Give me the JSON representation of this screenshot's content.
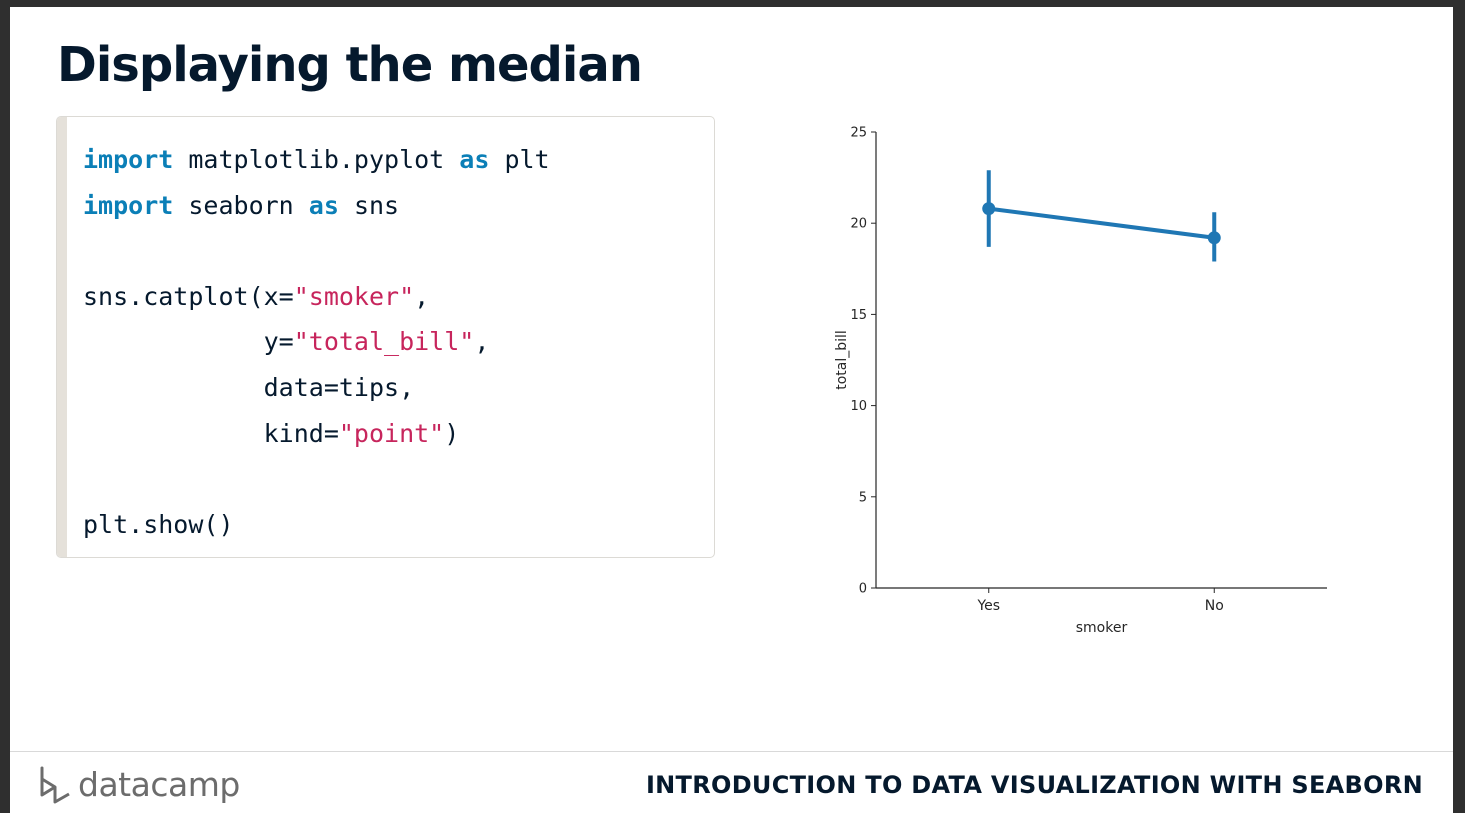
{
  "slide": {
    "title": "Displaying the median",
    "code_lines": [
      [
        {
          "t": "import",
          "k": "kw"
        },
        {
          "t": " matplotlib.pyplot "
        },
        {
          "t": "as",
          "k": "kw"
        },
        {
          "t": " plt"
        }
      ],
      [
        {
          "t": "import",
          "k": "kw"
        },
        {
          "t": " seaborn "
        },
        {
          "t": "as",
          "k": "kw"
        },
        {
          "t": " sns"
        }
      ],
      [],
      [
        {
          "t": "sns.catplot(x="
        },
        {
          "t": "\"smoker\"",
          "k": "str"
        },
        {
          "t": ","
        }
      ],
      [
        {
          "t": "            y="
        },
        {
          "t": "\"total_bill\"",
          "k": "str"
        },
        {
          "t": ","
        }
      ],
      [
        {
          "t": "            data=tips,"
        }
      ],
      [
        {
          "t": "            kind="
        },
        {
          "t": "\"point\"",
          "k": "str"
        },
        {
          "t": ")"
        }
      ],
      [],
      [
        {
          "t": "plt.show()"
        }
      ]
    ]
  },
  "chart_data": {
    "type": "line",
    "categories": [
      "Yes",
      "No"
    ],
    "values": [
      20.8,
      19.2
    ],
    "ci_low": [
      18.7,
      17.9
    ],
    "ci_high": [
      22.9,
      20.6
    ],
    "xlabel": "smoker",
    "ylabel": "total_bill",
    "ylim": [
      0,
      25
    ],
    "yticks": [
      0,
      5,
      10,
      15,
      20,
      25
    ],
    "grid": false,
    "color": "#1f77b4"
  },
  "footer": {
    "logo_text": "datacamp",
    "course_title": "INTRODUCTION TO DATA VISUALIZATION WITH SEABORN"
  },
  "colors": {
    "title": "#05192d",
    "keyword": "#0b7fb7",
    "string": "#c7255c"
  }
}
